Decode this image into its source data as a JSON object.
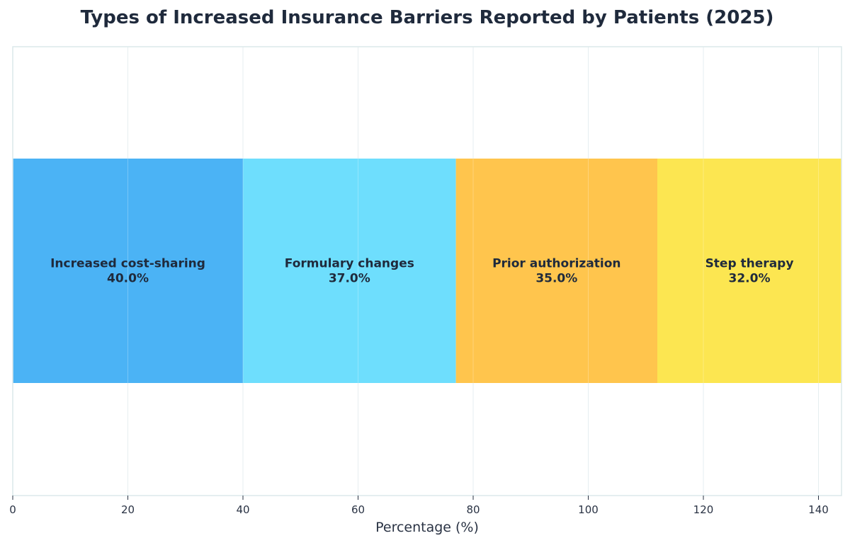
{
  "chart_data": {
    "type": "bar",
    "orientation": "horizontal",
    "stacked": true,
    "title": "Types of Increased Insurance Barriers Reported by Patients (2025)",
    "xlabel": "Percentage (%)",
    "ylabel": "",
    "xlim": [
      0,
      144
    ],
    "xticks": [
      0,
      20,
      40,
      60,
      80,
      100,
      120,
      140
    ],
    "grid": true,
    "segments": [
      {
        "label": "Increased cost-sharing",
        "value": 40.0,
        "value_label": "40.0%",
        "color": "#4BB3F5"
      },
      {
        "label": "Formulary changes",
        "value": 37.0,
        "value_label": "37.0%",
        "color": "#6EDEFD"
      },
      {
        "label": "Prior authorization",
        "value": 35.0,
        "value_label": "35.0%",
        "color": "#FFC54D"
      },
      {
        "label": "Step therapy",
        "value": 32.0,
        "value_label": "32.0%",
        "color": "#FCE651"
      }
    ]
  }
}
